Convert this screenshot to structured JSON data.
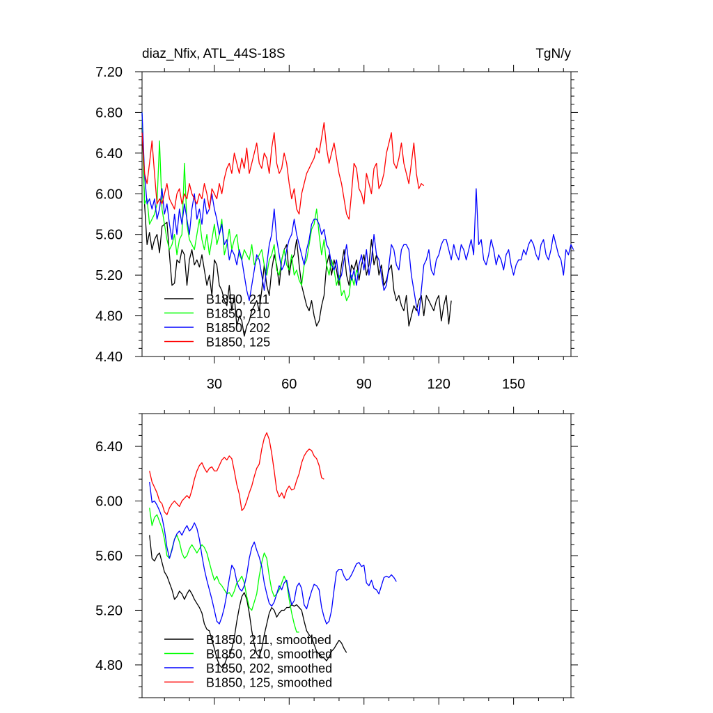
{
  "chart_data": [
    {
      "type": "line",
      "title": "diaz_Nfix, ATL_44S-18S",
      "units": "TgN/y",
      "xlim": [
        1,
        173
      ],
      "ylim": [
        4.4,
        7.2
      ],
      "xticks": [
        30,
        60,
        90,
        120,
        150
      ],
      "xtick_labels": [
        "30",
        "60",
        "90",
        "120",
        "150"
      ],
      "yticks": [
        4.4,
        4.8,
        5.2,
        5.6,
        6.0,
        6.4,
        6.8,
        7.2
      ],
      "ytick_labels": [
        "4.40",
        "4.80",
        "5.20",
        "5.60",
        "6.00",
        "6.40",
        "6.80",
        "7.20"
      ],
      "legend_position": "bottom-left",
      "series": [
        {
          "name": "B1850, 211",
          "color": "#000000",
          "x_start": 1,
          "values": [
            6.78,
            5.9,
            5.5,
            5.62,
            5.45,
            5.55,
            5.6,
            5.42,
            5.68,
            5.7,
            5.72,
            5.4,
            5.1,
            5.12,
            5.35,
            5.32,
            5.45,
            5.4,
            5.1,
            5.35,
            5.45,
            5.3,
            5.35,
            5.28,
            5.4,
            5.25,
            5.1,
            5.2,
            5.0,
            5.35,
            5.3,
            5.1,
            5.05,
            4.95,
            4.9,
            5.1,
            4.85,
            5.0,
            4.7,
            4.8,
            4.75,
            4.6,
            4.7,
            4.75,
            4.85,
            4.9,
            4.95,
            4.85,
            5.05,
            5.3,
            5.1,
            5.0,
            5.25,
            5.4,
            5.3,
            5.1,
            5.35,
            5.45,
            5.5,
            5.2,
            5.35,
            5.4,
            5.55,
            5.3,
            5.1,
            5.0,
            4.9,
            4.85,
            4.95,
            4.8,
            4.7,
            4.75,
            4.9,
            5.0,
            5.3,
            5.4,
            5.2,
            5.35,
            5.25,
            5.1,
            5.3,
            5.45,
            5.2,
            5.1,
            5.3,
            5.25,
            5.35,
            5.15,
            5.3,
            5.4,
            5.2,
            5.3,
            5.55,
            5.3,
            5.4,
            5.2,
            5.3,
            5.1,
            5.15,
            5.25,
            5.3,
            5.05,
            4.95,
            5.0,
            4.9,
            4.85,
            5.0,
            4.7,
            4.8,
            4.9,
            4.85,
            4.95,
            5.0,
            4.8,
            5.0,
            4.95,
            4.9,
            4.85,
            4.95,
            5.0,
            4.75,
            4.9,
            5.0,
            4.72,
            4.95
          ]
        },
        {
          "name": "B1850, 210",
          "color": "#00ff00",
          "x_start": 1,
          "values": [
            6.8,
            5.9,
            5.95,
            5.7,
            5.75,
            5.8,
            5.9,
            6.52,
            5.85,
            5.7,
            5.55,
            5.45,
            5.5,
            5.6,
            5.4,
            5.55,
            5.6,
            6.3,
            5.7,
            5.55,
            5.5,
            5.45,
            5.6,
            5.75,
            5.55,
            5.45,
            5.6,
            5.4,
            5.55,
            5.7,
            5.5,
            5.6,
            5.75,
            5.4,
            5.5,
            5.65,
            5.45,
            5.55,
            5.6,
            5.4,
            5.35,
            5.45,
            5.4,
            5.35,
            5.5,
            5.3,
            5.35,
            5.4,
            5.45,
            5.3,
            5.2,
            5.35,
            5.4,
            5.5,
            5.25,
            5.2,
            5.35,
            5.45,
            5.3,
            5.25,
            5.4,
            5.2,
            5.25,
            5.15,
            5.1,
            5.3,
            5.35,
            5.5,
            5.65,
            5.7,
            5.85,
            5.6,
            5.4,
            5.55,
            5.3,
            5.2,
            5.35,
            5.25,
            5.1,
            5.2,
            5.0,
            5.05,
            4.95,
            5.0,
            5.2,
            5.1,
            5.25,
            5.2
          ]
        },
        {
          "name": "B1850, 202",
          "color": "#0000ff",
          "x_start": 1,
          "values": [
            6.8,
            6.2,
            5.9,
            5.95,
            5.85,
            5.95,
            5.75,
            5.85,
            6.05,
            5.8,
            5.9,
            5.7,
            5.55,
            5.8,
            5.6,
            5.85,
            5.7,
            5.9,
            5.75,
            5.6,
            5.85,
            6.0,
            5.75,
            5.85,
            5.7,
            5.95,
            5.8,
            5.85,
            6.0,
            5.85,
            5.75,
            5.6,
            5.7,
            5.5,
            5.55,
            5.35,
            5.45,
            5.4,
            5.3,
            5.45,
            5.35,
            5.2,
            5.05,
            4.95,
            5.1,
            5.25,
            5.4,
            5.35,
            5.2,
            5.05,
            5.3,
            5.5,
            5.6,
            5.85,
            5.55,
            5.4,
            5.25,
            5.3,
            5.45,
            5.55,
            5.6,
            5.75,
            5.6,
            5.5,
            5.4,
            5.3,
            5.45,
            5.55,
            5.7,
            5.75,
            5.75,
            5.7,
            5.6,
            5.65,
            5.5,
            5.45,
            5.3,
            5.25,
            5.35,
            5.15,
            5.2,
            5.35,
            5.5,
            5.3,
            5.15,
            5.25,
            5.1,
            5.3,
            5.4,
            5.25,
            5.45,
            5.2,
            5.35,
            5.6,
            5.4,
            5.35,
            5.2,
            5.05,
            5.1,
            5.3,
            5.5,
            5.45,
            5.3,
            5.25,
            5.45,
            5.5,
            5.5,
            5.45,
            5.2,
            5.05,
            4.9,
            4.8,
            5.05,
            5.3,
            5.35,
            5.45,
            5.25,
            5.2,
            5.35,
            5.4,
            5.5,
            5.55,
            5.55,
            5.45,
            5.35,
            5.5,
            5.4,
            5.35,
            5.5,
            5.45,
            5.35,
            5.45,
            5.55,
            5.4,
            6.05,
            5.5,
            5.55,
            5.35,
            5.3,
            5.4,
            5.55,
            5.45,
            5.3,
            5.4,
            5.35,
            5.25,
            5.4,
            5.45,
            5.3,
            5.2,
            5.3,
            5.35,
            5.35,
            5.45,
            5.4,
            5.5,
            5.55,
            5.5,
            5.4,
            5.35,
            5.5,
            5.55,
            5.4,
            5.35,
            5.45,
            5.6,
            5.5,
            5.4,
            5.35,
            5.2,
            5.45,
            5.4,
            5.5,
            5.45
          ]
        },
        {
          "name": "B1850, 125",
          "color": "#ff0000",
          "x_start": 1,
          "values": [
            6.6,
            6.2,
            6.1,
            6.3,
            6.52,
            6.2,
            5.9,
            5.95,
            5.9,
            6.0,
            6.1,
            5.95,
            5.9,
            5.85,
            6.0,
            6.05,
            5.9,
            6.0,
            5.95,
            6.1,
            6.0,
            5.95,
            5.9,
            6.0,
            5.95,
            6.1,
            6.0,
            5.85,
            6.05,
            6.0,
            5.95,
            6.1,
            6.0,
            6.15,
            6.25,
            6.3,
            6.2,
            6.4,
            6.3,
            6.2,
            6.35,
            6.25,
            6.45,
            6.2,
            6.3,
            6.4,
            6.5,
            6.3,
            6.25,
            6.4,
            6.35,
            6.2,
            6.45,
            6.6,
            6.3,
            6.2,
            6.25,
            6.4,
            6.3,
            6.1,
            5.95,
            6.05,
            5.85,
            5.8,
            6.0,
            6.1,
            6.2,
            6.25,
            6.3,
            6.35,
            6.45,
            6.4,
            6.55,
            6.7,
            6.45,
            6.3,
            6.4,
            6.5,
            6.35,
            6.2,
            6.1,
            5.95,
            5.8,
            5.75,
            6.0,
            6.3,
            6.25,
            6.05,
            6.0,
            5.9,
            6.2,
            6.1,
            6.0,
            6.25,
            6.3,
            6.05,
            6.1,
            6.2,
            6.4,
            6.5,
            6.6,
            6.3,
            6.25,
            6.35,
            6.5,
            6.3,
            6.2,
            6.1,
            6.3,
            6.5,
            6.2,
            6.05,
            6.1,
            6.08
          ]
        }
      ]
    },
    {
      "type": "line",
      "xlim": [
        1,
        173
      ],
      "ylim": [
        4.56,
        6.64
      ],
      "xticks": [
        30,
        60,
        90,
        120,
        150
      ],
      "yticks": [
        4.8,
        5.2,
        5.6,
        6.0,
        6.4
      ],
      "ytick_labels": [
        "4.80",
        "5.20",
        "5.60",
        "6.00",
        "6.40"
      ],
      "legend_position": "bottom-left",
      "series": [
        {
          "name": "B1850, 211, smoothed",
          "color": "#000000",
          "x_start": 4,
          "values": [
            5.75,
            5.58,
            5.56,
            5.6,
            5.62,
            5.55,
            5.48,
            5.45,
            5.4,
            5.35,
            5.28,
            5.3,
            5.34,
            5.32,
            5.28,
            5.32,
            5.35,
            5.32,
            5.28,
            5.25,
            5.22,
            5.18,
            5.1,
            5.06,
            5.05,
            4.98,
            4.92,
            4.85,
            4.8,
            4.78,
            4.8,
            4.85,
            4.86,
            4.92,
            5.0,
            5.12,
            5.22,
            5.3,
            5.33,
            5.28,
            5.18,
            5.05,
            4.95,
            4.88,
            4.86,
            4.92,
            5.02,
            5.1,
            5.18,
            5.22,
            5.2,
            5.15,
            5.18,
            5.2,
            5.2,
            5.22,
            5.22,
            5.24,
            5.23,
            5.24,
            5.22,
            5.2,
            5.12,
            5.05,
            5.02,
            5.0,
            4.95,
            4.9,
            4.88,
            4.86,
            4.85,
            4.83,
            4.86,
            4.9,
            4.92,
            4.95,
            4.98,
            4.96,
            4.92,
            4.89
          ]
        },
        {
          "name": "B1850, 210, smoothed",
          "color": "#00ff00",
          "x_start": 4,
          "values": [
            5.95,
            5.82,
            5.88,
            5.9,
            5.85,
            5.8,
            5.72,
            5.6,
            5.58,
            5.65,
            5.72,
            5.75,
            5.7,
            5.62,
            5.58,
            5.6,
            5.65,
            5.68,
            5.65,
            5.62,
            5.65,
            5.68,
            5.66,
            5.62,
            5.55,
            5.48,
            5.42,
            5.45,
            5.4,
            5.38,
            5.35,
            5.32,
            5.33,
            5.3,
            5.34,
            5.4,
            5.42,
            5.45,
            5.4,
            5.3,
            5.22,
            5.2,
            5.26,
            5.32,
            5.45,
            5.55,
            5.62,
            5.58,
            5.45,
            5.35,
            5.3,
            5.32,
            5.35,
            5.4,
            5.45,
            5.4,
            5.28,
            5.18,
            5.1,
            5.04,
            5.04
          ]
        },
        {
          "name": "B1850, 202, smoothed",
          "color": "#0000ff",
          "x_start": 4,
          "values": [
            6.14,
            5.99,
            6.0,
            5.97,
            5.93,
            5.88,
            5.79,
            5.66,
            5.58,
            5.64,
            5.72,
            5.76,
            5.78,
            5.75,
            5.79,
            5.82,
            5.78,
            5.8,
            5.84,
            5.8,
            5.72,
            5.6,
            5.5,
            5.42,
            5.35,
            5.28,
            5.2,
            5.12,
            5.1,
            5.15,
            5.22,
            5.32,
            5.43,
            5.53,
            5.5,
            5.41,
            5.36,
            5.34,
            5.38,
            5.46,
            5.58,
            5.66,
            5.7,
            5.64,
            5.59,
            5.52,
            5.4,
            5.32,
            5.25,
            5.23,
            5.26,
            5.32,
            5.38,
            5.35,
            5.4,
            5.42,
            5.32,
            5.24,
            5.27,
            5.37,
            5.4,
            5.36,
            5.24,
            5.21,
            5.28,
            5.34,
            5.39,
            5.38,
            5.35,
            5.22,
            5.15,
            5.1,
            5.12,
            5.2,
            5.35,
            5.48,
            5.5,
            5.5,
            5.45,
            5.42,
            5.43,
            5.46,
            5.5,
            5.54,
            5.55,
            5.52,
            5.53,
            5.4,
            5.38,
            5.42,
            5.36,
            5.35,
            5.32,
            5.38,
            5.44,
            5.45,
            5.44,
            5.46,
            5.44,
            5.41
          ]
        },
        {
          "name": "B1850, 125, smoothed",
          "color": "#ff0000",
          "x_start": 4,
          "values": [
            6.22,
            6.14,
            6.1,
            6.06,
            6.0,
            5.98,
            5.92,
            5.9,
            5.95,
            5.98,
            6.0,
            5.98,
            5.96,
            6.0,
            6.02,
            6.04,
            6.02,
            6.08,
            6.16,
            6.22,
            6.26,
            6.28,
            6.24,
            6.21,
            6.24,
            6.25,
            6.22,
            6.22,
            6.26,
            6.3,
            6.32,
            6.3,
            6.33,
            6.31,
            6.22,
            6.12,
            6.05,
            5.93,
            5.95,
            6.0,
            6.06,
            6.11,
            6.18,
            6.24,
            6.27,
            6.38,
            6.46,
            6.5,
            6.45,
            6.35,
            6.22,
            6.08,
            6.03,
            6.06,
            6.02,
            6.08,
            6.11,
            6.08,
            6.09,
            6.15,
            6.2,
            6.28,
            6.33,
            6.36,
            6.38,
            6.37,
            6.33,
            6.31,
            6.26,
            6.17,
            6.16
          ]
        }
      ]
    }
  ]
}
